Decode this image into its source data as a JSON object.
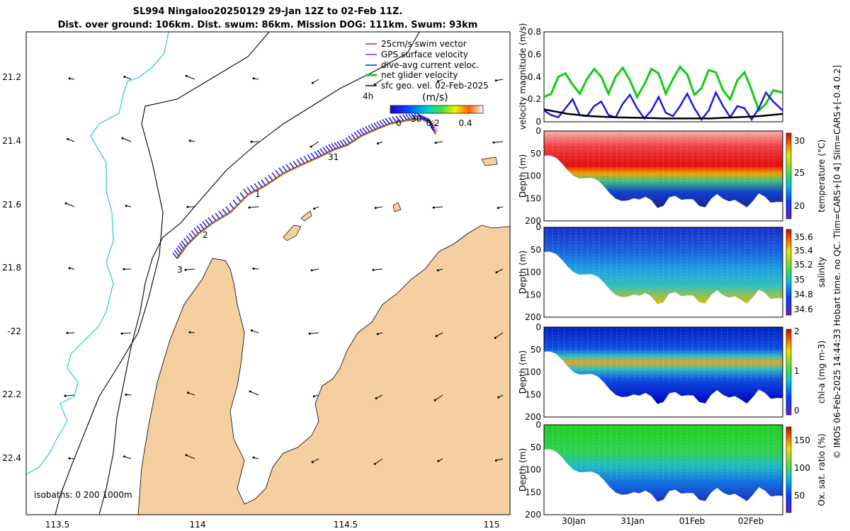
{
  "title": {
    "line1": "SL994 Ningaloo20250129 29-Jan 12Z to 02-Feb 11Z.",
    "line2": "Dist. over ground: 106km. Dist. swum: 86km. Mission DOG: 111km. Swum: 93km"
  },
  "colors": {
    "land": "#f6cfa0",
    "isobath_cyan": "#22cccc",
    "swim": "#dd2222",
    "gps": "#8a2be2",
    "dive": "#1a1adf",
    "net": "#11cc11",
    "geo": "#000000"
  },
  "map": {
    "legend": [
      "25cm/s swim vector",
      "GPS surface velocity",
      "dive-avg current veloc.",
      "net glider velocity",
      "sfc geo. vel. 02-Feb-2025"
    ],
    "time_step_label": "4h",
    "colorbar_unit": "(m/s)",
    "colorbar_ticks": [
      "0",
      "0.2",
      "0.4"
    ],
    "lon_ticks": [
      "113.5",
      "114",
      "114.5",
      "115"
    ],
    "lat_ticks": [
      "21.2",
      "21.4",
      "21.6",
      "21.8",
      "-22",
      "22.2",
      "22.4"
    ],
    "day_markers": [
      "30",
      "31",
      "1",
      "2",
      "3"
    ],
    "isobath_label": "isobaths: 0   200  1000m"
  },
  "chart_data": [
    {
      "type": "line",
      "title": "",
      "ylabel": "velocity magnitude (m/s)",
      "ylim": [
        0,
        0.8
      ],
      "yticks": [
        "0",
        "0.2",
        "0.4",
        "0.6",
        "0.8"
      ],
      "series": [
        {
          "name": "net glider velocity",
          "color": "#11cc11",
          "x": [
            0,
            0.03,
            0.06,
            0.09,
            0.12,
            0.15,
            0.18,
            0.21,
            0.24,
            0.27,
            0.3,
            0.33,
            0.36,
            0.39,
            0.42,
            0.45,
            0.48,
            0.51,
            0.54,
            0.57,
            0.6,
            0.63,
            0.66,
            0.69,
            0.72,
            0.75,
            0.78,
            0.81,
            0.84,
            0.87,
            0.9,
            0.93,
            0.96,
            1.0
          ],
          "values": [
            0.22,
            0.25,
            0.4,
            0.43,
            0.33,
            0.25,
            0.38,
            0.47,
            0.4,
            0.25,
            0.4,
            0.48,
            0.37,
            0.22,
            0.33,
            0.47,
            0.43,
            0.25,
            0.38,
            0.49,
            0.42,
            0.24,
            0.3,
            0.46,
            0.44,
            0.28,
            0.2,
            0.37,
            0.44,
            0.28,
            0.1,
            0.16,
            0.28,
            0.26
          ]
        },
        {
          "name": "dive-avg current veloc.",
          "color": "#1a1adf",
          "x": [
            0,
            0.03,
            0.06,
            0.09,
            0.12,
            0.15,
            0.18,
            0.21,
            0.24,
            0.27,
            0.3,
            0.33,
            0.36,
            0.39,
            0.42,
            0.45,
            0.48,
            0.51,
            0.54,
            0.57,
            0.6,
            0.63,
            0.66,
            0.69,
            0.72,
            0.75,
            0.78,
            0.81,
            0.84,
            0.87,
            0.9,
            0.93,
            0.96,
            1.0
          ],
          "values": [
            0.1,
            0.06,
            0.04,
            0.12,
            0.2,
            0.06,
            0.05,
            0.14,
            0.18,
            0.06,
            0.04,
            0.16,
            0.24,
            0.12,
            0.03,
            0.1,
            0.22,
            0.08,
            0.05,
            0.14,
            0.25,
            0.12,
            0.02,
            0.1,
            0.26,
            0.14,
            0.04,
            0.14,
            0.12,
            0.02,
            0.12,
            0.26,
            0.18,
            0.1
          ]
        },
        {
          "name": "sfc geo. vel.",
          "color": "#000000",
          "x": [
            0,
            0.1,
            0.2,
            0.3,
            0.4,
            0.5,
            0.6,
            0.7,
            0.8,
            0.9,
            1.0
          ],
          "values": [
            0.11,
            0.07,
            0.05,
            0.04,
            0.035,
            0.03,
            0.03,
            0.03,
            0.04,
            0.05,
            0.07
          ]
        }
      ]
    },
    {
      "type": "heatmap",
      "ylabel": "Depth (m)",
      "colorbar_label": "temperature (°C)",
      "colorbar_ticks": [
        "20",
        "25",
        "30"
      ],
      "ylim": [
        200,
        0
      ],
      "yticks": [
        "0",
        "50",
        "100",
        "150",
        "200"
      ]
    },
    {
      "type": "heatmap",
      "ylabel": "Depth (m)",
      "colorbar_label": "salinity",
      "colorbar_ticks": [
        "34.6",
        "34.8",
        "35",
        "35.2",
        "35.4",
        "35.6"
      ],
      "ylim": [
        200,
        0
      ],
      "yticks": [
        "0",
        "50",
        "100",
        "150",
        "200"
      ]
    },
    {
      "type": "heatmap",
      "ylabel": "Depth (m)",
      "colorbar_label": "chl-a (mg m-3)",
      "colorbar_ticks": [
        "0",
        "1",
        "2"
      ],
      "ylim": [
        200,
        0
      ],
      "yticks": [
        "0",
        "50",
        "100",
        "150",
        "200"
      ]
    },
    {
      "type": "heatmap",
      "ylabel": "Depth (m)",
      "colorbar_label": "Ox. sat. ratio (%)",
      "colorbar_ticks": [
        "50",
        "100",
        "150"
      ],
      "ylim": [
        200,
        0
      ],
      "yticks": [
        "0",
        "50",
        "100",
        "150",
        "200"
      ]
    }
  ],
  "time_axis": {
    "ticks": [
      "30Jan",
      "31Jan",
      "01Feb",
      "02Feb"
    ]
  },
  "side_note": "© IMOS 06-Feb-2025 14:44:33 Hobart time. no QC. Tlim=CARS+[0 4] Slim=CARS+[-0.4 0.2]"
}
